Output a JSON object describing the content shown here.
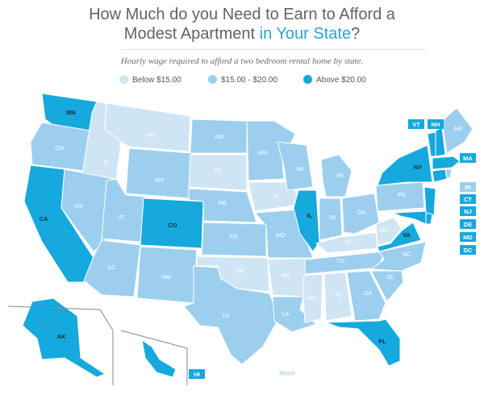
{
  "title": {
    "line1": "How Much do you Need to Earn to Afford a",
    "line2_plain": "Modest Apartment ",
    "line2_highlight": "in Your State",
    "line2_end": "?"
  },
  "subtitle": "Hourly wage required to afford a two bedroom rental home by state.",
  "colors": {
    "low": "#cfe5f4",
    "mid": "#9ccfee",
    "high": "#15a9dd",
    "text": "#5f6368",
    "accent": "#2aa3d6"
  },
  "legend": [
    {
      "label": "Below $15.00",
      "category": "low"
    },
    {
      "label": "$15.00 - $20.00",
      "category": "mid"
    },
    {
      "label": "Above $20.00",
      "category": "high"
    }
  ],
  "states": {
    "WA": "high",
    "OR": "mid",
    "CA": "high",
    "ID": "low",
    "NV": "mid",
    "MT": "low",
    "WY": "mid",
    "UT": "mid",
    "AZ": "mid",
    "CO": "high",
    "NM": "mid",
    "ND": "mid",
    "SD": "low",
    "NE": "mid",
    "KS": "mid",
    "OK": "low",
    "TX": "mid",
    "MN": "mid",
    "IA": "low",
    "MO": "mid",
    "AR": "low",
    "LA": "mid",
    "WI": "mid",
    "IL": "high",
    "MI": "mid",
    "IN": "mid",
    "KY": "low",
    "TN": "mid",
    "MS": "low",
    "AL": "low",
    "OH": "mid",
    "WV": "low",
    "GA": "mid",
    "FL": "high",
    "SC": "mid",
    "NC": "mid",
    "VA": "high",
    "PA": "mid",
    "NY": "high",
    "ME": "mid",
    "VT": "high",
    "NH": "high",
    "MA": "high",
    "RI": "mid",
    "CT": "high",
    "NJ": "high",
    "DE": "high",
    "MD": "high",
    "DC": "high",
    "AK": "high",
    "HI": "high",
    "PR": "low"
  },
  "box_labels": [
    "VT",
    "NH",
    "MA",
    "RI",
    "CT",
    "NJ",
    "DE",
    "MD",
    "DC",
    "HI"
  ]
}
